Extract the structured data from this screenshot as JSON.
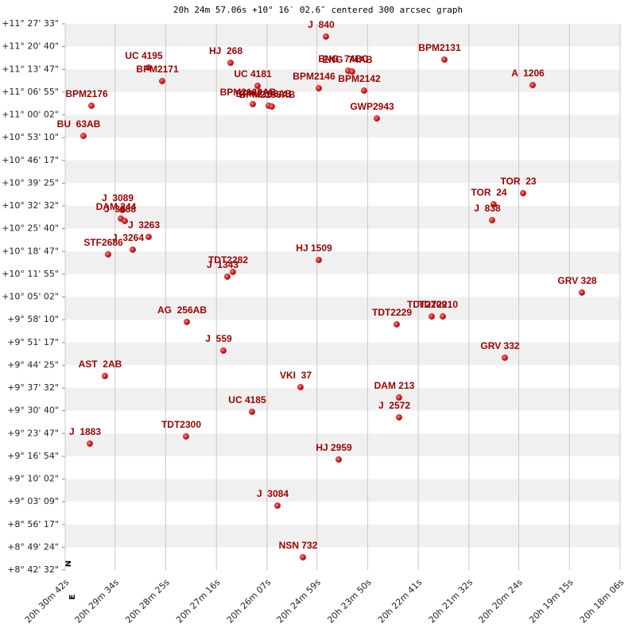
{
  "chart_data": {
    "type": "scatter",
    "title": "20h 24m 57.06s +10° 16′ 02.6″ centered 300 arcsec graph",
    "compass": [
      "N",
      "E"
    ],
    "color": "#cc0000",
    "label_color": "#990000",
    "grid": true,
    "xlim": [
      20.51167,
      20.30167
    ],
    "ylim": [
      8.70889,
      11.45917
    ],
    "xticks": [
      {
        "value": 20.51167,
        "label": "20h 30m 42s"
      },
      {
        "value": 20.49278,
        "label": "20h 29m 34s"
      },
      {
        "value": 20.47361,
        "label": "20h 28m 25s"
      },
      {
        "value": 20.45444,
        "label": "20h 27m 16s"
      },
      {
        "value": 20.43528,
        "label": "20h 26m 07s"
      },
      {
        "value": 20.41639,
        "label": "20h 24m 59s"
      },
      {
        "value": 20.39722,
        "label": "20h 23m 50s"
      },
      {
        "value": 20.37806,
        "label": "20h 22m 41s"
      },
      {
        "value": 20.35889,
        "label": "20h 21m 32s"
      },
      {
        "value": 20.34,
        "label": "20h 20m 24s"
      },
      {
        "value": 20.32083,
        "label": "20h 19m 15s"
      },
      {
        "value": 20.30167,
        "label": "20h 18m 06s"
      }
    ],
    "yticks": [
      {
        "value": 11.45917,
        "label": "+11° 27' 33\""
      },
      {
        "value": 11.34444,
        "label": "+11° 20' 40\""
      },
      {
        "value": 11.22972,
        "label": "+11° 13' 47\""
      },
      {
        "value": 11.11528,
        "label": "+11° 06' 55\""
      },
      {
        "value": 11.00056,
        "label": "+11° 00' 02\""
      },
      {
        "value": 10.88611,
        "label": "+10° 53' 10\""
      },
      {
        "value": 10.77139,
        "label": "+10° 46' 17\""
      },
      {
        "value": 10.65694,
        "label": "+10° 39' 25\""
      },
      {
        "value": 10.54222,
        "label": "+10° 32' 32\""
      },
      {
        "value": 10.42778,
        "label": "+10° 25' 40\""
      },
      {
        "value": 10.31306,
        "label": "+10° 18' 47\""
      },
      {
        "value": 10.19861,
        "label": "+10° 11' 55\""
      },
      {
        "value": 10.08389,
        "label": "+10° 05' 02\""
      },
      {
        "value": 9.96944,
        "label": "+9° 58' 10\""
      },
      {
        "value": 9.85472,
        "label": "+9° 51' 17\""
      },
      {
        "value": 9.74028,
        "label": "+9° 44' 25\""
      },
      {
        "value": 9.62556,
        "label": "+9° 37' 32\""
      },
      {
        "value": 9.51111,
        "label": "+9° 30' 40\""
      },
      {
        "value": 9.39639,
        "label": "+9° 23' 47\""
      },
      {
        "value": 9.28167,
        "label": "+9° 16' 54\""
      },
      {
        "value": 9.16722,
        "label": "+9° 10' 02\""
      },
      {
        "value": 9.0525,
        "label": "+9° 03' 09\""
      },
      {
        "value": 8.93806,
        "label": "+8° 56' 17\""
      },
      {
        "value": 8.82333,
        "label": "+8° 49' 24\""
      },
      {
        "value": 8.70889,
        "label": "+8° 42' 32\""
      }
    ],
    "labels": [
      "J  840",
      "HJ  268",
      "UC 4195",
      "BPM2171",
      "BPM2131",
      "ENG  74BC",
      "ENG  74AB",
      "A  1206",
      "UC 4181",
      "BPM2146",
      "BPM2142",
      "BPM2176",
      "BPM2163AB",
      "BPM2156AB",
      "BPM2158AB",
      "GWP2943",
      "BU  63AB",
      "TOR  23",
      "TOR  24",
      "J  838",
      "J  3089",
      "DAM 244",
      "J  3088",
      "J  3263",
      "J  3264",
      "STF2686",
      "HJ 1509",
      "TDT2282",
      "J  1343",
      "GRV 328",
      "AG  256AB",
      "TDT2229",
      "TDT2209",
      "TDT2210",
      "J  559",
      "GRV 332",
      "AST  2AB",
      "VKI  37",
      "DAM 213",
      "UC 4185",
      "J  2572",
      "TDT2300",
      "J  1883",
      "HJ 2959",
      "J  3084",
      "NSN 732"
    ],
    "x": [
      20.41299,
      20.44909,
      20.48008,
      20.47497,
      20.36816,
      20.40456,
      20.40306,
      20.33476,
      20.43886,
      20.4157,
      20.39855,
      20.50174,
      20.44067,
      20.43465,
      20.43345,
      20.39373,
      20.50475,
      20.33837,
      20.34951,
      20.35011,
      20.49001,
      20.49061,
      20.48911,
      20.48008,
      20.4861,
      20.49542,
      20.4157,
      20.44819,
      20.45029,
      20.31611,
      20.46564,
      20.38621,
      20.37297,
      20.36876,
      20.4518,
      20.34529,
      20.49663,
      20.42262,
      20.38531,
      20.44097,
      20.38531,
      20.46594,
      20.50234,
      20.40817,
      20.43134,
      20.42171
    ],
    "values": [
      11.39512,
      11.26301,
      11.23899,
      11.17093,
      11.27902,
      11.22298,
      11.21897,
      11.15092,
      11.14691,
      11.1349,
      11.12289,
      11.04683,
      11.05484,
      11.04683,
      11.04283,
      10.98278,
      10.8947,
      10.60647,
      10.55042,
      10.47035,
      10.5224,
      10.47836,
      10.46635,
      10.38629,
      10.32223,
      10.29821,
      10.27019,
      10.21014,
      10.18612,
      10.10605,
      9.95793,
      9.94592,
      9.98596,
      9.98596,
      9.81381,
      9.77778,
      9.68571,
      9.62966,
      9.57762,
      9.50556,
      9.47754,
      9.38146,
      9.34543,
      9.26536,
      9.03317,
      8.77296
    ]
  }
}
